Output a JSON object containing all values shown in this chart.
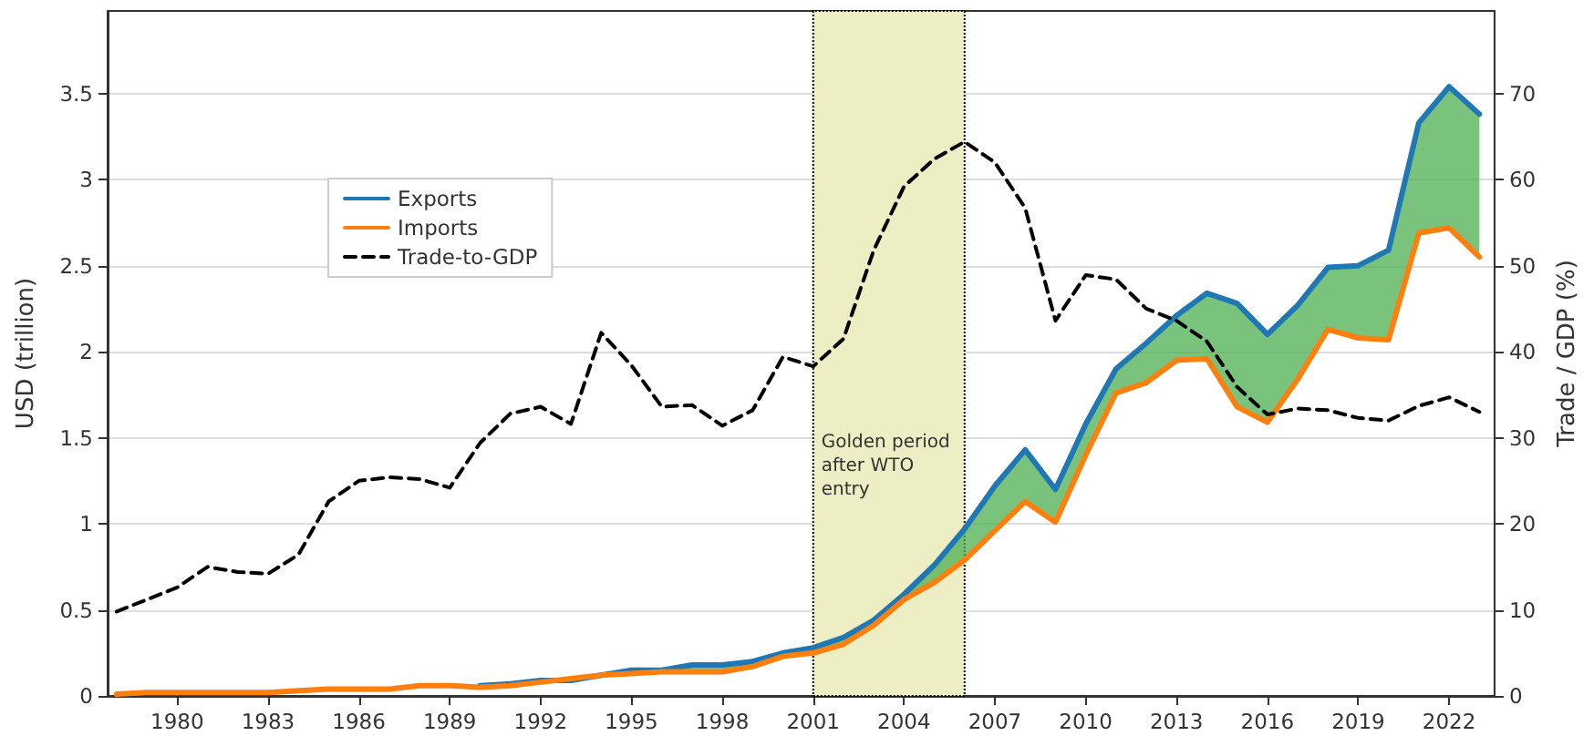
{
  "chart_data": {
    "type": "line",
    "xlabel": null,
    "ylabel": "USD (trillion)",
    "y2label": "Trade / GDP (%)",
    "x": [
      1978,
      1979,
      1980,
      1981,
      1982,
      1983,
      1984,
      1985,
      1986,
      1987,
      1988,
      1989,
      1990,
      1991,
      1992,
      1993,
      1994,
      1995,
      1996,
      1997,
      1998,
      1999,
      2000,
      2001,
      2002,
      2003,
      2004,
      2005,
      2006,
      2007,
      2008,
      2009,
      2010,
      2011,
      2012,
      2013,
      2014,
      2015,
      2016,
      2017,
      2018,
      2019,
      2020,
      2021,
      2022,
      2023
    ],
    "series": [
      {
        "name": "Exports",
        "color": "#1f77b4",
        "values": [
          null,
          null,
          null,
          null,
          null,
          null,
          null,
          null,
          null,
          null,
          null,
          null,
          0.06,
          0.07,
          0.09,
          0.09,
          0.12,
          0.15,
          0.15,
          0.18,
          0.18,
          0.2,
          0.25,
          0.28,
          0.34,
          0.44,
          0.59,
          0.76,
          0.97,
          1.22,
          1.43,
          1.2,
          1.58,
          1.9,
          2.05,
          2.21,
          2.34,
          2.28,
          2.1,
          2.27,
          2.49,
          2.5,
          2.59,
          3.33,
          3.54,
          3.38
        ],
        "lower": [
          0.01,
          0.02,
          0.02,
          0.02,
          0.02,
          0.02,
          0.03,
          0.04,
          0.04,
          0.04,
          0.06,
          0.06,
          0.05,
          0.06,
          0.08,
          0.1,
          0.12,
          0.13,
          0.14,
          0.14,
          0.14,
          0.17,
          0.23,
          0.25,
          0.3,
          0.41,
          0.56,
          0.66,
          0.79,
          0.96,
          1.13,
          1.01,
          1.4,
          1.76,
          1.82,
          1.95,
          1.96,
          1.68,
          1.59,
          1.84,
          2.13,
          2.08,
          2.07,
          2.69,
          2.72,
          2.55
        ],
        "upper": [
          0.01,
          0.02,
          0.02,
          0.02,
          0.02,
          0.02,
          0.03,
          0.04,
          0.04,
          0.04,
          0.06,
          0.06,
          0.06,
          0.07,
          0.09,
          0.09,
          0.12,
          0.15,
          0.15,
          0.18,
          0.18,
          0.2,
          0.25,
          0.28,
          0.34,
          0.44,
          0.59,
          0.76,
          0.97,
          1.22,
          1.43,
          1.2,
          1.58,
          1.9,
          2.05,
          2.21,
          2.34,
          2.28,
          2.1,
          2.27,
          2.49,
          2.5,
          2.59,
          3.33,
          3.54,
          3.38
        ]
      },
      {
        "name": "Imports",
        "color": "#ff7f0e",
        "values": [
          0.01,
          0.02,
          0.02,
          0.02,
          0.02,
          0.02,
          0.03,
          0.04,
          0.04,
          0.04,
          0.06,
          0.06,
          0.05,
          0.06,
          0.08,
          0.1,
          0.12,
          0.13,
          0.14,
          0.14,
          0.14,
          0.17,
          0.23,
          0.25,
          0.3,
          0.41,
          0.56,
          0.66,
          0.79,
          0.96,
          1.13,
          1.01,
          1.4,
          1.76,
          1.82,
          1.95,
          1.96,
          1.68,
          1.59,
          1.84,
          2.13,
          2.08,
          2.07,
          2.69,
          2.72,
          2.55
        ]
      },
      {
        "name": "Trade-to-GDP",
        "color": "#000000",
        "axis": "y2",
        "line_style": "dashed",
        "values": [
          9.8,
          11.2,
          12.6,
          15.0,
          14.4,
          14.2,
          16.4,
          22.6,
          25.0,
          25.4,
          25.2,
          24.2,
          29.4,
          32.8,
          33.6,
          31.6,
          42.2,
          38.4,
          33.6,
          33.8,
          31.4,
          33.2,
          39.4,
          38.3,
          41.5,
          51.8,
          59.2,
          62.4,
          64.4,
          62.0,
          56.7,
          43.6,
          48.9,
          48.4,
          45.0,
          43.6,
          41.2,
          35.9,
          32.7,
          33.4,
          33.2,
          32.3,
          32.0,
          33.7,
          34.7,
          33.0
        ]
      }
    ],
    "xlim": [
      1977.7,
      2023.5
    ],
    "xticks": [
      1980,
      1983,
      1986,
      1989,
      1992,
      1995,
      1998,
      2001,
      2004,
      2007,
      2010,
      2013,
      2016,
      2019,
      2022
    ],
    "ylim": [
      0,
      3.98
    ],
    "yticks": [
      0,
      0.5,
      1,
      1.5,
      2,
      2.5,
      3,
      3.5
    ],
    "y2lim": [
      0,
      79.6
    ],
    "y2ticks": [
      0,
      10,
      20,
      30,
      40,
      50,
      60,
      70
    ],
    "bands": [
      {
        "axis": "x",
        "from": 2001,
        "to": 2006,
        "label": "Golden period\nafter WTO\nentry",
        "color": "#eeeec4"
      }
    ],
    "grid": "y",
    "legend": "left",
    "marker": "none",
    "line_style": "solid"
  }
}
